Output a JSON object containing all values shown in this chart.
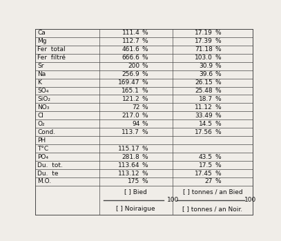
{
  "rows": [
    {
      "label": "Ca",
      "val1": "111.4",
      "pct1": "%",
      "val2": "17.19",
      "pct2": "%"
    },
    {
      "label": "Mg",
      "val1": "112.7",
      "pct1": "%",
      "val2": "17.39",
      "pct2": "%"
    },
    {
      "label": "Fer  total",
      "val1": "461.6",
      "pct1": "%",
      "val2": "71.18",
      "pct2": "%"
    },
    {
      "label": "Fer  filtré",
      "val1": "666.6",
      "pct1": "%",
      "val2": "103.0",
      "pct2": "%"
    },
    {
      "label": "Sr",
      "val1": "200",
      "pct1": "%",
      "val2": "30.9",
      "pct2": "%"
    },
    {
      "label": "Na",
      "val1": "256.9",
      "pct1": "%",
      "val2": "39.6",
      "pct2": "%"
    },
    {
      "label": "K",
      "val1": "169.47",
      "pct1": "%",
      "val2": "26.15",
      "pct2": "%"
    },
    {
      "label": "SO₄",
      "val1": "165.1",
      "pct1": "%",
      "val2": "25.48",
      "pct2": "%"
    },
    {
      "label": "SiO₂",
      "val1": "121.2",
      "pct1": "%",
      "val2": "18.7",
      "pct2": "%"
    },
    {
      "label": "NO₃",
      "val1": "72",
      "pct1": "%",
      "val2": "11.12",
      "pct2": "%"
    },
    {
      "label": "Cl",
      "val1": "217.0",
      "pct1": "%",
      "val2": "33.49",
      "pct2": "%"
    },
    {
      "label": "O₂",
      "val1": "94",
      "pct1": "%",
      "val2": "14.5",
      "pct2": "%"
    },
    {
      "label": "Cond.",
      "val1": "113.7",
      "pct1": "%",
      "val2": "17.56",
      "pct2": "%"
    },
    {
      "label": "PH",
      "val1": "",
      "pct1": "",
      "val2": "",
      "pct2": ""
    },
    {
      "label": "T°C",
      "val1": "115.17",
      "pct1": "%",
      "val2": "",
      "pct2": ""
    },
    {
      "label": "PO₄",
      "val1": "281.8",
      "pct1": "%",
      "val2": "43.5",
      "pct2": "%"
    },
    {
      "label": "Du.  tot.",
      "val1": "113.64",
      "pct1": "%",
      "val2": "17.5",
      "pct2": "%"
    },
    {
      "label": "Du.  te",
      "val1": "113.12",
      "pct1": "%",
      "val2": "17.45",
      "pct2": "%"
    },
    {
      "label": "M.O.",
      "val1": "175",
      "pct1": "%",
      "val2": "27",
      "pct2": "%"
    }
  ],
  "footer_left_top": "[ ] Bied",
  "footer_left_bot": "[ ] Noiraigue",
  "footer_right_top": "[ ] tonnes / an Bied",
  "footer_right_bot": "[ ] tonnes / an Noir.",
  "footer_100": "100",
  "bg_color": "#f0ede8",
  "line_color": "#444444",
  "text_color": "#111111",
  "font_size": 6.5,
  "vline1": 0.295,
  "vline2": 0.63
}
